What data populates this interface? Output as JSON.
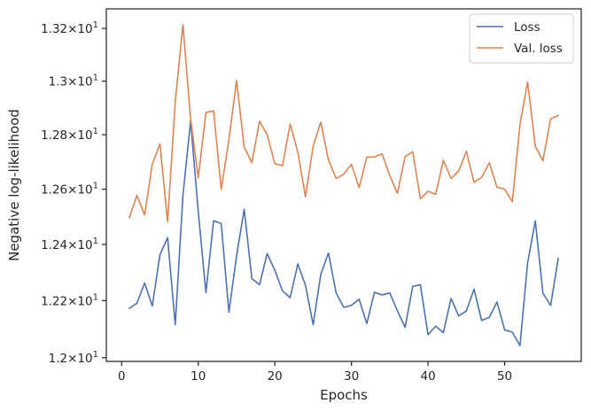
{
  "chart_data": {
    "type": "line",
    "xlabel": "Epochs",
    "ylabel": "Negative log-likelihood",
    "x_range": [
      -2,
      60
    ],
    "ylim": [
      11.987,
      13.275
    ],
    "y_scale": "log",
    "x_ticks": [
      0,
      10,
      20,
      30,
      40,
      50
    ],
    "x_tick_labels": [
      "0",
      "10",
      "20",
      "30",
      "40",
      "50"
    ],
    "y_ticks": [
      12.0,
      12.2,
      12.4,
      12.6,
      12.8,
      13.0,
      13.2
    ],
    "y_tick_labels": [
      "1.2×10¹",
      "1.22×10¹",
      "1.24×10¹",
      "1.26×10¹",
      "1.28×10¹",
      "1.3×10¹",
      "1.32×10¹"
    ],
    "grid": false,
    "legend_position": "top-right",
    "x": [
      1,
      2,
      3,
      4,
      5,
      6,
      7,
      8,
      9,
      10,
      11,
      12,
      13,
      14,
      15,
      16,
      17,
      18,
      19,
      20,
      21,
      22,
      23,
      24,
      25,
      26,
      27,
      28,
      29,
      30,
      31,
      32,
      33,
      34,
      35,
      36,
      37,
      38,
      39,
      40,
      41,
      42,
      43,
      44,
      45,
      46,
      47,
      48,
      49,
      50,
      51,
      52,
      53,
      54,
      55,
      56,
      57
    ],
    "series": [
      {
        "name": "Loss",
        "color": "#4c72b0",
        "values": [
          12.172,
          12.191,
          12.262,
          12.181,
          12.363,
          12.424,
          12.115,
          12.576,
          12.851,
          12.519,
          12.228,
          12.485,
          12.475,
          12.159,
          12.358,
          12.527,
          12.278,
          12.256,
          12.367,
          12.307,
          12.234,
          12.21,
          12.33,
          12.254,
          12.115,
          12.293,
          12.369,
          12.227,
          12.176,
          12.183,
          12.205,
          12.119,
          12.229,
          12.22,
          12.227,
          12.164,
          12.106,
          12.25,
          12.256,
          12.08,
          12.11,
          12.087,
          12.207,
          12.146,
          12.163,
          12.24,
          12.13,
          12.141,
          12.195,
          12.097,
          12.089,
          12.042,
          12.334,
          12.485,
          12.226,
          12.183,
          12.35
        ]
      },
      {
        "name": "Val. loss",
        "color": "#dd8452",
        "values": [
          12.496,
          12.577,
          12.506,
          12.691,
          12.766,
          12.482,
          12.924,
          13.214,
          12.861,
          12.641,
          12.882,
          12.889,
          12.599,
          12.781,
          13.002,
          12.754,
          12.697,
          12.85,
          12.8,
          12.693,
          12.686,
          12.84,
          12.735,
          12.572,
          12.758,
          12.847,
          12.707,
          12.639,
          12.655,
          12.691,
          12.605,
          12.717,
          12.718,
          12.729,
          12.65,
          12.584,
          12.719,
          12.737,
          12.565,
          12.592,
          12.581,
          12.706,
          12.639,
          12.666,
          12.739,
          12.625,
          12.643,
          12.697,
          12.607,
          12.6,
          12.554,
          12.838,
          12.997,
          12.758,
          12.704,
          12.859,
          12.872
        ]
      }
    ]
  }
}
